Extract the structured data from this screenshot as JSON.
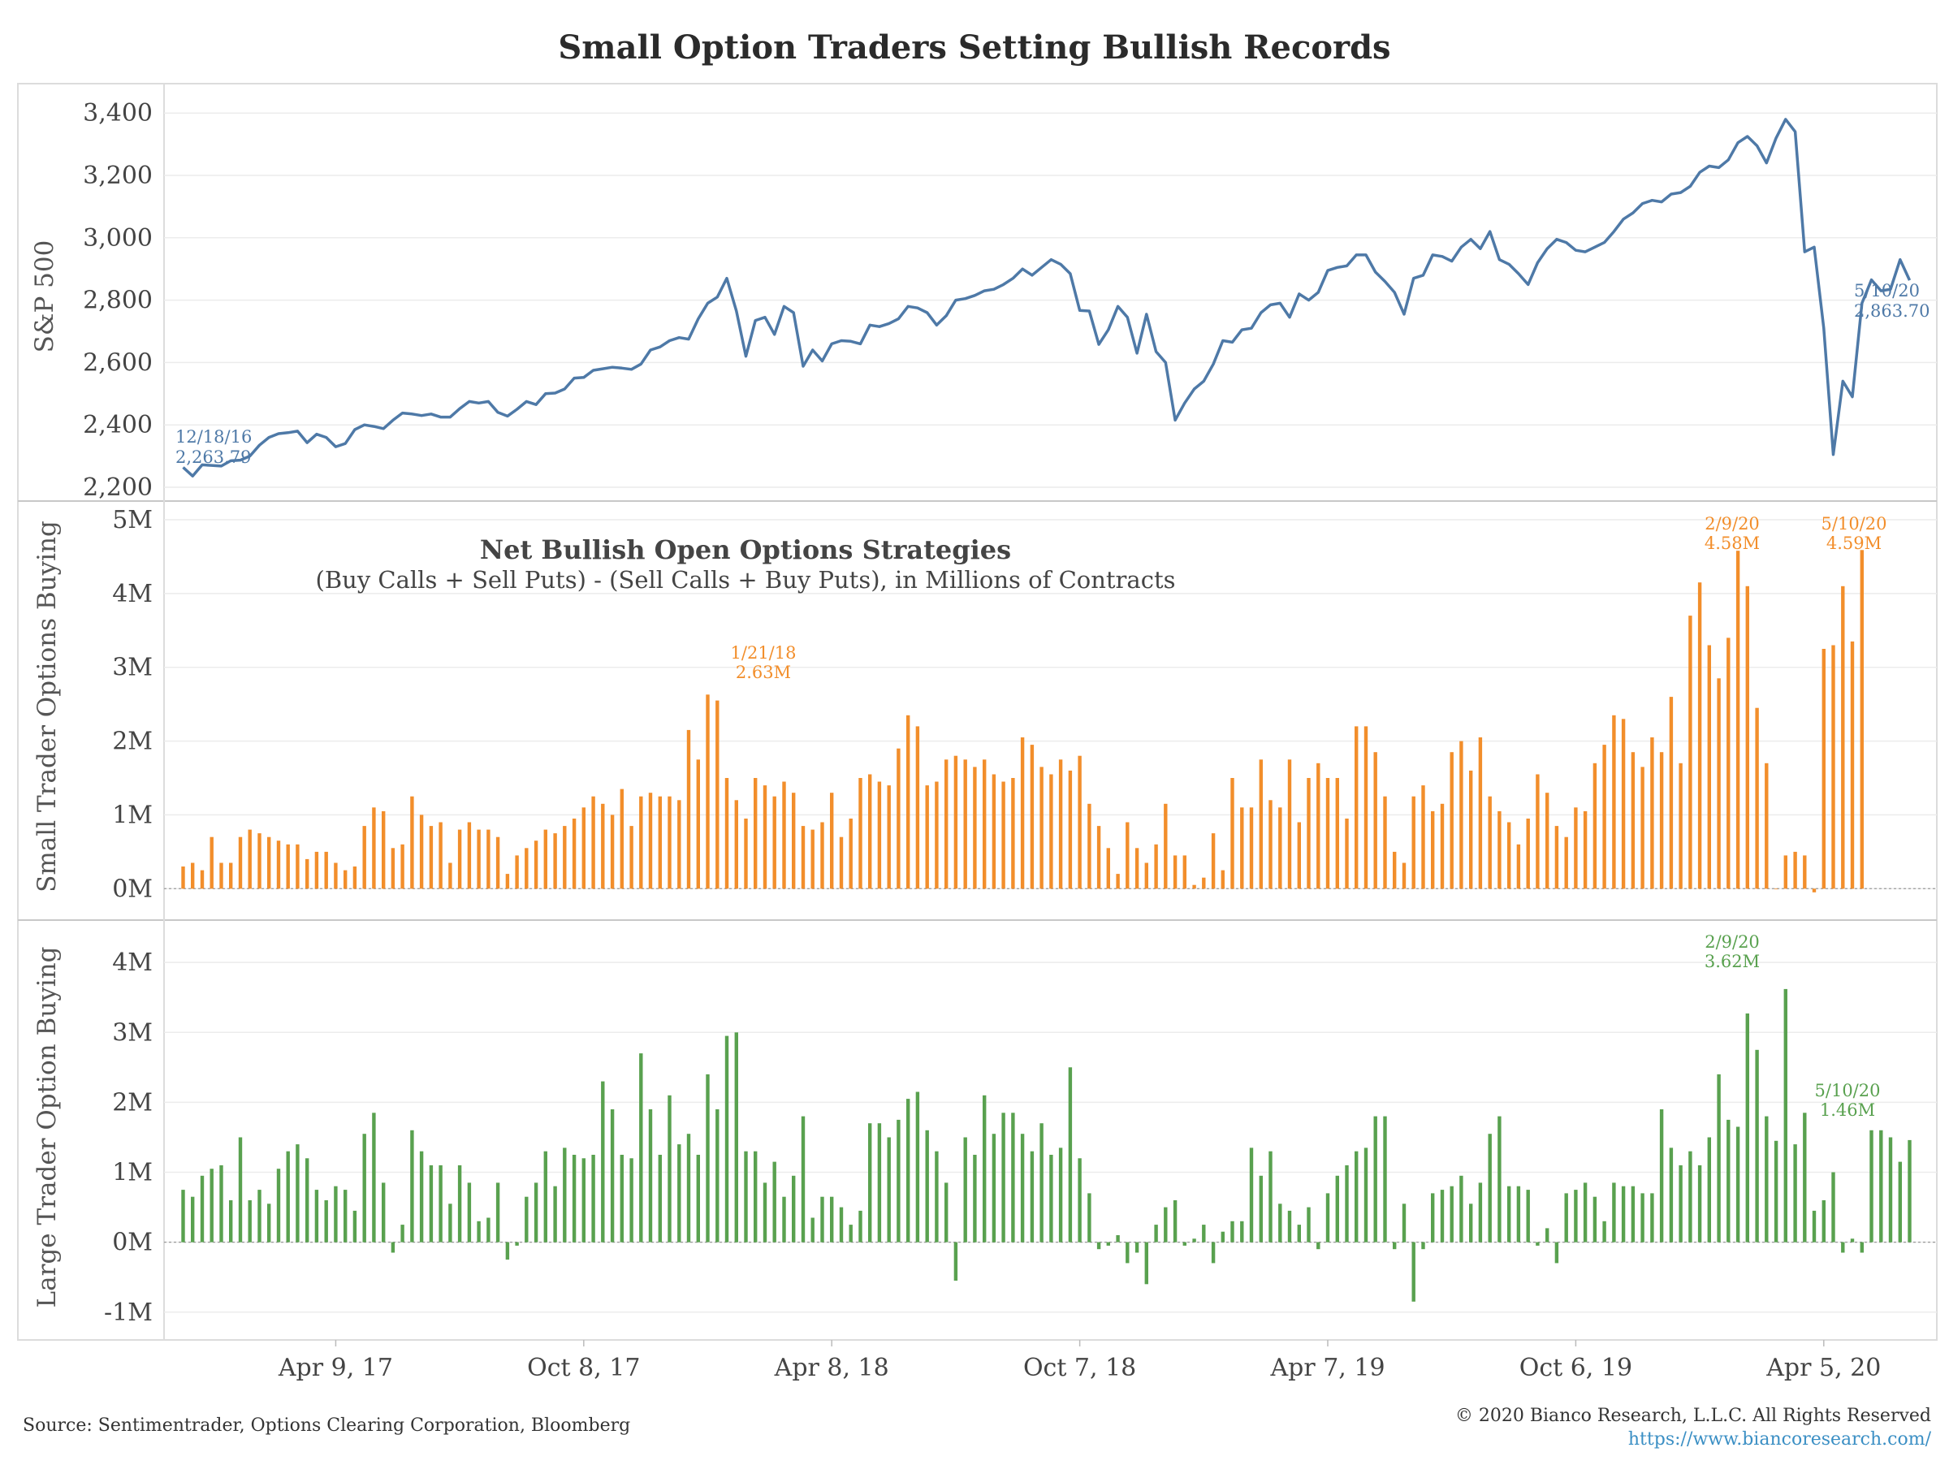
{
  "title": "Small Option Traders Setting Bullish Records",
  "source": "Source: Sentimentrader, Options Clearing Corporation, Bloomberg",
  "copyright": "© 2020 Bianco Research, L.L.C. All Rights Reserved",
  "website": "https://www.biancoresearch.com/",
  "colors": {
    "sp500": "#4e79a7",
    "small": "#f28e2b",
    "large": "#59a14f"
  },
  "chart_data": [
    {
      "type": "line",
      "ylabel": "S&P 500",
      "ylim": [
        2200,
        3450
      ],
      "yticks": [
        2200,
        2400,
        2600,
        2800,
        3000,
        3200,
        3400
      ],
      "ytick_labels": [
        "2,200",
        "2,400",
        "2,600",
        "2,800",
        "3,000",
        "3,200",
        "3,400"
      ],
      "xticks": [
        "2017-04-09",
        "2017-10-08",
        "2018-04-08",
        "2018-10-07",
        "2019-04-07",
        "2019-10-06",
        "2020-04-05"
      ],
      "xtick_labels": [
        "Apr 9, 17",
        "Oct 8, 17",
        "Apr 8, 18",
        "Oct 7, 18",
        "Apr 7, 19",
        "Oct 6, 19",
        "Apr 5, 20"
      ],
      "x_start": "2016-12-18",
      "x_step_days": 7,
      "values": [
        2263.79,
        2236,
        2272,
        2270,
        2268,
        2285,
        2287,
        2300,
        2335,
        2360,
        2372,
        2375,
        2380,
        2343,
        2370,
        2360,
        2330,
        2340,
        2385,
        2400,
        2395,
        2388,
        2415,
        2438,
        2435,
        2430,
        2435,
        2425,
        2425,
        2452,
        2475,
        2470,
        2475,
        2440,
        2428,
        2450,
        2475,
        2465,
        2500,
        2502,
        2515,
        2550,
        2552,
        2575,
        2580,
        2585,
        2582,
        2578,
        2595,
        2640,
        2650,
        2670,
        2680,
        2675,
        2740,
        2790,
        2810,
        2870,
        2765,
        2620,
        2735,
        2745,
        2690,
        2780,
        2760,
        2588,
        2640,
        2605,
        2660,
        2670,
        2668,
        2660,
        2720,
        2715,
        2725,
        2740,
        2780,
        2775,
        2760,
        2720,
        2750,
        2800,
        2805,
        2815,
        2830,
        2835,
        2850,
        2870,
        2900,
        2880,
        2905,
        2930,
        2915,
        2885,
        2767,
        2765,
        2658,
        2705,
        2780,
        2745,
        2630,
        2755,
        2635,
        2600,
        2415,
        2470,
        2515,
        2540,
        2595,
        2670,
        2665,
        2705,
        2710,
        2760,
        2785,
        2790,
        2745,
        2820,
        2800,
        2825,
        2895,
        2905,
        2910,
        2945,
        2945,
        2890,
        2860,
        2825,
        2755,
        2870,
        2880,
        2945,
        2940,
        2925,
        2970,
        2995,
        2965,
        3020,
        2930,
        2915,
        2885,
        2850,
        2920,
        2965,
        2995,
        2985,
        2960,
        2955,
        2970,
        2985,
        3020,
        3060,
        3080,
        3110,
        3120,
        3115,
        3140,
        3145,
        3165,
        3210,
        3230,
        3225,
        3250,
        3305,
        3325,
        3295,
        3240,
        3320,
        3380,
        3340,
        2955,
        2970,
        2710,
        2305,
        2540,
        2490,
        2790,
        2865,
        2830,
        2835,
        2930,
        2863.7
      ],
      "annotations": [
        {
          "date_label": "12/18/16",
          "value_label": "2,263.79"
        },
        {
          "date_label": "5/10/20",
          "value_label": "2,863.70"
        }
      ]
    },
    {
      "type": "bar",
      "ylabel": "Small Trader Options Buying",
      "title": "Net Bullish Open Options Strategies",
      "subtitle": "(Buy Calls + Sell Puts) - (Sell Calls + Buy Puts), in Millions of Contracts",
      "ylim": [
        -0.25,
        5.0
      ],
      "yticks": [
        0,
        1,
        2,
        3,
        4,
        5
      ],
      "ytick_labels": [
        "0M",
        "1M",
        "2M",
        "3M",
        "4M",
        "5M"
      ],
      "x_start": "2016-12-18",
      "x_step_days": 7,
      "values": [
        0.3,
        0.35,
        0.25,
        0.7,
        0.35,
        0.35,
        0.7,
        0.8,
        0.75,
        0.7,
        0.65,
        0.6,
        0.6,
        0.4,
        0.5,
        0.5,
        0.35,
        0.25,
        0.3,
        0.85,
        1.1,
        1.05,
        0.55,
        0.6,
        1.25,
        1.0,
        0.85,
        0.9,
        0.35,
        0.8,
        0.9,
        0.8,
        0.8,
        0.7,
        0.2,
        0.45,
        0.55,
        0.65,
        0.8,
        0.75,
        0.85,
        0.95,
        1.1,
        1.25,
        1.15,
        1.0,
        1.35,
        0.85,
        1.25,
        1.3,
        1.25,
        1.25,
        1.2,
        2.15,
        1.75,
        2.63,
        2.55,
        1.5,
        1.2,
        0.95,
        1.5,
        1.4,
        1.25,
        1.45,
        1.3,
        0.85,
        0.8,
        0.9,
        1.3,
        0.7,
        0.95,
        1.5,
        1.55,
        1.45,
        1.4,
        1.9,
        2.35,
        2.2,
        1.4,
        1.45,
        1.75,
        1.8,
        1.75,
        1.65,
        1.75,
        1.55,
        1.45,
        1.5,
        2.05,
        1.95,
        1.65,
        1.55,
        1.75,
        1.6,
        1.8,
        1.15,
        0.85,
        0.55,
        0.2,
        0.9,
        0.55,
        0.35,
        0.6,
        1.15,
        0.45,
        0.45,
        0.05,
        0.15,
        0.75,
        0.25,
        1.5,
        1.1,
        1.1,
        1.75,
        1.2,
        1.1,
        1.75,
        0.9,
        1.5,
        1.7,
        1.5,
        1.5,
        0.95,
        2.2,
        2.2,
        1.85,
        1.25,
        0.5,
        0.35,
        1.25,
        1.4,
        1.05,
        1.15,
        1.85,
        2.0,
        1.6,
        2.05,
        1.25,
        1.05,
        0.9,
        0.6,
        0.95,
        1.55,
        1.3,
        0.85,
        0.7,
        1.1,
        1.05,
        1.7,
        1.95,
        2.35,
        2.3,
        1.85,
        1.65,
        2.05,
        1.85,
        2.6,
        1.7,
        3.7,
        4.15,
        3.3,
        2.85,
        3.4,
        4.58,
        4.1,
        2.45,
        1.7,
        0.0,
        0.45,
        0.5,
        0.45,
        -0.05,
        3.25,
        3.3,
        4.1,
        3.35,
        4.59
      ],
      "annotations": [
        {
          "date_label": "1/21/18",
          "value_label": "2.63M"
        },
        {
          "date_label": "2/9/20",
          "value_label": "4.58M"
        },
        {
          "date_label": "5/10/20",
          "value_label": "4.59M"
        }
      ]
    },
    {
      "type": "bar",
      "ylabel": "Large Trader Option Buying",
      "ylim": [
        -1.2,
        4.35
      ],
      "yticks": [
        -1,
        0,
        1,
        2,
        3,
        4
      ],
      "ytick_labels": [
        "-1M",
        "0M",
        "1M",
        "2M",
        "3M",
        "4M"
      ],
      "x_start": "2016-12-18",
      "x_step_days": 7,
      "values": [
        0.75,
        0.65,
        0.95,
        1.05,
        1.1,
        0.6,
        1.5,
        0.6,
        0.75,
        0.55,
        1.05,
        1.3,
        1.4,
        1.2,
        0.75,
        0.6,
        0.8,
        0.75,
        0.45,
        1.55,
        1.85,
        0.85,
        -0.15,
        0.25,
        1.6,
        1.3,
        1.1,
        1.1,
        0.55,
        1.1,
        0.85,
        0.3,
        0.35,
        0.85,
        -0.25,
        -0.05,
        0.65,
        0.85,
        1.3,
        0.8,
        1.35,
        1.25,
        1.2,
        1.25,
        2.3,
        1.9,
        1.25,
        1.2,
        2.7,
        1.9,
        1.25,
        2.1,
        1.4,
        1.55,
        1.25,
        2.4,
        1.9,
        2.95,
        3.0,
        1.3,
        1.3,
        0.85,
        1.15,
        0.65,
        0.95,
        1.8,
        0.35,
        0.65,
        0.65,
        0.5,
        0.25,
        0.45,
        1.7,
        1.7,
        1.5,
        1.75,
        2.05,
        2.15,
        1.6,
        1.3,
        0.85,
        -0.55,
        1.5,
        1.25,
        2.1,
        1.55,
        1.85,
        1.85,
        1.55,
        1.3,
        1.7,
        1.25,
        1.35,
        2.5,
        1.2,
        0.7,
        -0.1,
        -0.05,
        0.1,
        -0.3,
        -0.15,
        -0.6,
        0.25,
        0.5,
        0.6,
        -0.05,
        0.05,
        0.25,
        -0.3,
        0.15,
        0.3,
        0.3,
        1.35,
        0.95,
        1.3,
        0.55,
        0.45,
        0.25,
        0.5,
        -0.1,
        0.7,
        0.95,
        1.1,
        1.3,
        1.35,
        1.8,
        1.8,
        -0.1,
        0.55,
        -0.85,
        -0.1,
        0.7,
        0.75,
        0.8,
        0.95,
        0.55,
        0.85,
        1.55,
        1.8,
        0.8,
        0.8,
        0.75,
        -0.05,
        0.2,
        -0.3,
        0.7,
        0.75,
        0.85,
        0.65,
        0.3,
        0.85,
        0.8,
        0.8,
        0.7,
        0.7,
        1.9,
        1.35,
        1.1,
        1.3,
        1.1,
        1.5,
        2.4,
        1.75,
        1.65,
        3.27,
        2.75,
        1.8,
        1.45,
        3.62,
        1.4,
        1.85,
        0.45,
        0.6,
        1.0,
        -0.15,
        0.05,
        -0.15,
        1.6,
        1.6,
        1.5,
        1.15,
        1.46
      ],
      "annotations": [
        {
          "date_label": "2/9/20",
          "value_label": "3.62M"
        },
        {
          "date_label": "5/10/20",
          "value_label": "1.46M"
        }
      ]
    }
  ]
}
